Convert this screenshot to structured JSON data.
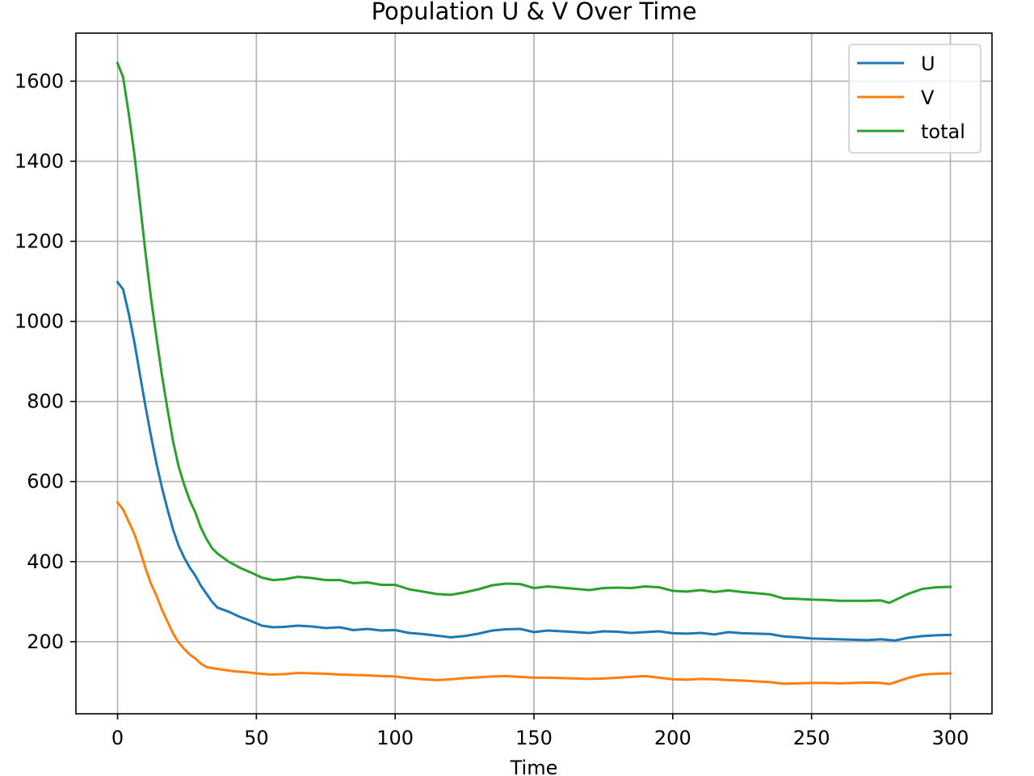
{
  "chart_data": {
    "type": "line",
    "title": "Population U & V Over Time",
    "xlabel": "Time",
    "ylabel": "",
    "xlim": [
      -15,
      315
    ],
    "ylim": [
      20,
      1720
    ],
    "xticks": [
      0,
      50,
      100,
      150,
      200,
      250,
      300
    ],
    "yticks": [
      200,
      400,
      600,
      800,
      1000,
      1200,
      1400,
      1600
    ],
    "grid": true,
    "legend_position": "top-right",
    "series": [
      {
        "name": "U",
        "color": "#1f77b4",
        "points": [
          [
            0,
            1098
          ],
          [
            2,
            1080
          ],
          [
            4,
            1020
          ],
          [
            6,
            950
          ],
          [
            8,
            870
          ],
          [
            10,
            790
          ],
          [
            12,
            715
          ],
          [
            14,
            645
          ],
          [
            16,
            585
          ],
          [
            18,
            530
          ],
          [
            20,
            480
          ],
          [
            22,
            440
          ],
          [
            24,
            410
          ],
          [
            26,
            385
          ],
          [
            28,
            365
          ],
          [
            30,
            340
          ],
          [
            32,
            320
          ],
          [
            34,
            300
          ],
          [
            36,
            285
          ],
          [
            40,
            275
          ],
          [
            44,
            262
          ],
          [
            48,
            252
          ],
          [
            52,
            240
          ],
          [
            56,
            236
          ],
          [
            60,
            237
          ],
          [
            65,
            240
          ],
          [
            70,
            238
          ],
          [
            75,
            234
          ],
          [
            80,
            236
          ],
          [
            85,
            229
          ],
          [
            90,
            232
          ],
          [
            95,
            228
          ],
          [
            100,
            229
          ],
          [
            105,
            222
          ],
          [
            110,
            219
          ],
          [
            115,
            215
          ],
          [
            120,
            211
          ],
          [
            125,
            214
          ],
          [
            130,
            220
          ],
          [
            135,
            228
          ],
          [
            140,
            231
          ],
          [
            145,
            232
          ],
          [
            150,
            224
          ],
          [
            155,
            228
          ],
          [
            160,
            226
          ],
          [
            165,
            224
          ],
          [
            170,
            222
          ],
          [
            175,
            226
          ],
          [
            180,
            225
          ],
          [
            185,
            222
          ],
          [
            190,
            224
          ],
          [
            195,
            226
          ],
          [
            200,
            221
          ],
          [
            205,
            220
          ],
          [
            210,
            222
          ],
          [
            215,
            218
          ],
          [
            220,
            224
          ],
          [
            225,
            221
          ],
          [
            230,
            220
          ],
          [
            235,
            219
          ],
          [
            240,
            213
          ],
          [
            245,
            211
          ],
          [
            250,
            208
          ],
          [
            255,
            207
          ],
          [
            260,
            206
          ],
          [
            265,
            205
          ],
          [
            270,
            204
          ],
          [
            275,
            206
          ],
          [
            280,
            203
          ],
          [
            285,
            210
          ],
          [
            290,
            214
          ],
          [
            295,
            216
          ],
          [
            300,
            217
          ]
        ]
      },
      {
        "name": "V",
        "color": "#ff7f0e",
        "points": [
          [
            0,
            548
          ],
          [
            2,
            530
          ],
          [
            4,
            500
          ],
          [
            6,
            470
          ],
          [
            8,
            430
          ],
          [
            10,
            385
          ],
          [
            12,
            345
          ],
          [
            14,
            315
          ],
          [
            16,
            280
          ],
          [
            18,
            250
          ],
          [
            20,
            220
          ],
          [
            22,
            198
          ],
          [
            24,
            182
          ],
          [
            26,
            168
          ],
          [
            28,
            158
          ],
          [
            30,
            145
          ],
          [
            32,
            137
          ],
          [
            34,
            134
          ],
          [
            38,
            130
          ],
          [
            42,
            126
          ],
          [
            46,
            124
          ],
          [
            50,
            121
          ],
          [
            55,
            118
          ],
          [
            60,
            119
          ],
          [
            65,
            122
          ],
          [
            70,
            121
          ],
          [
            75,
            120
          ],
          [
            80,
            118
          ],
          [
            85,
            117
          ],
          [
            90,
            116
          ],
          [
            95,
            114
          ],
          [
            100,
            113
          ],
          [
            105,
            109
          ],
          [
            110,
            106
          ],
          [
            115,
            104
          ],
          [
            120,
            106
          ],
          [
            125,
            109
          ],
          [
            130,
            111
          ],
          [
            135,
            113
          ],
          [
            140,
            114
          ],
          [
            145,
            112
          ],
          [
            150,
            110
          ],
          [
            155,
            110
          ],
          [
            160,
            109
          ],
          [
            165,
            108
          ],
          [
            170,
            107
          ],
          [
            175,
            108
          ],
          [
            180,
            110
          ],
          [
            185,
            112
          ],
          [
            190,
            114
          ],
          [
            195,
            110
          ],
          [
            200,
            106
          ],
          [
            205,
            105
          ],
          [
            210,
            107
          ],
          [
            215,
            106
          ],
          [
            220,
            104
          ],
          [
            225,
            103
          ],
          [
            230,
            101
          ],
          [
            235,
            99
          ],
          [
            240,
            95
          ],
          [
            245,
            96
          ],
          [
            250,
            97
          ],
          [
            255,
            97
          ],
          [
            260,
            96
          ],
          [
            265,
            97
          ],
          [
            270,
            98
          ],
          [
            275,
            97
          ],
          [
            278,
            94
          ],
          [
            285,
            110
          ],
          [
            290,
            118
          ],
          [
            295,
            120
          ],
          [
            300,
            121
          ]
        ]
      },
      {
        "name": "total",
        "color": "#2ca02c",
        "points": [
          [
            0,
            1645
          ],
          [
            2,
            1610
          ],
          [
            4,
            1520
          ],
          [
            6,
            1420
          ],
          [
            8,
            1300
          ],
          [
            10,
            1175
          ],
          [
            12,
            1060
          ],
          [
            14,
            960
          ],
          [
            16,
            865
          ],
          [
            18,
            780
          ],
          [
            20,
            700
          ],
          [
            22,
            638
          ],
          [
            24,
            592
          ],
          [
            26,
            553
          ],
          [
            28,
            523
          ],
          [
            30,
            485
          ],
          [
            32,
            457
          ],
          [
            34,
            434
          ],
          [
            36,
            420
          ],
          [
            40,
            400
          ],
          [
            44,
            385
          ],
          [
            48,
            373
          ],
          [
            52,
            360
          ],
          [
            56,
            354
          ],
          [
            60,
            356
          ],
          [
            65,
            362
          ],
          [
            70,
            359
          ],
          [
            75,
            354
          ],
          [
            80,
            354
          ],
          [
            85,
            346
          ],
          [
            90,
            348
          ],
          [
            95,
            342
          ],
          [
            100,
            342
          ],
          [
            105,
            331
          ],
          [
            110,
            325
          ],
          [
            115,
            319
          ],
          [
            120,
            317
          ],
          [
            125,
            323
          ],
          [
            130,
            331
          ],
          [
            135,
            341
          ],
          [
            140,
            345
          ],
          [
            145,
            344
          ],
          [
            150,
            334
          ],
          [
            155,
            338
          ],
          [
            160,
            335
          ],
          [
            165,
            332
          ],
          [
            170,
            329
          ],
          [
            175,
            334
          ],
          [
            180,
            335
          ],
          [
            185,
            334
          ],
          [
            190,
            338
          ],
          [
            195,
            336
          ],
          [
            200,
            327
          ],
          [
            205,
            325
          ],
          [
            210,
            329
          ],
          [
            215,
            324
          ],
          [
            220,
            328
          ],
          [
            225,
            324
          ],
          [
            230,
            321
          ],
          [
            235,
            318
          ],
          [
            240,
            308
          ],
          [
            245,
            307
          ],
          [
            250,
            305
          ],
          [
            255,
            304
          ],
          [
            260,
            302
          ],
          [
            265,
            302
          ],
          [
            270,
            302
          ],
          [
            275,
            303
          ],
          [
            278,
            297
          ],
          [
            285,
            320
          ],
          [
            290,
            332
          ],
          [
            295,
            336
          ],
          [
            300,
            337
          ]
        ]
      }
    ]
  }
}
